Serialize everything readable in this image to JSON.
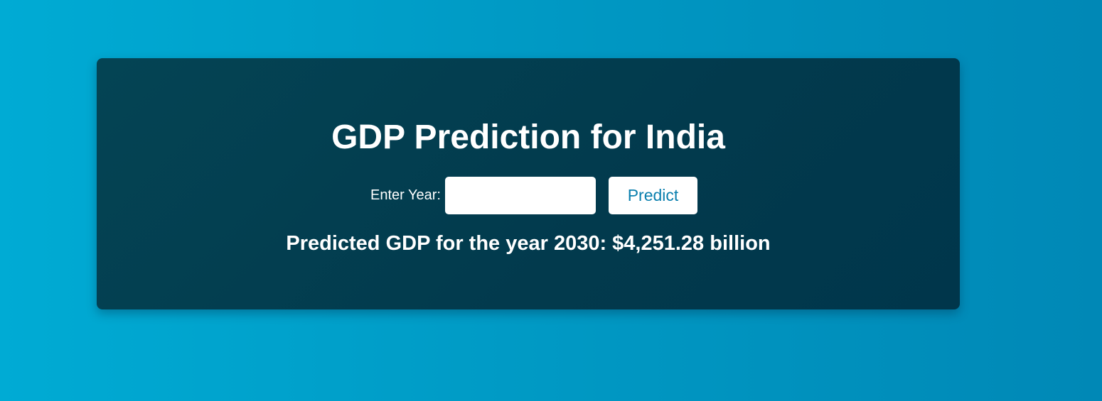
{
  "page": {
    "title": "GDP Prediction for India"
  },
  "form": {
    "year_label": "Enter Year:",
    "year_value": "",
    "year_placeholder": "",
    "predict_label": "Predict"
  },
  "result": {
    "text": "Predicted GDP for the year 2030: $4,251.28 billion"
  },
  "colors": {
    "background_start": "#00abd4",
    "background_end": "#0088b6",
    "card": "#023a4d",
    "button_text": "#0a7fae",
    "text": "#ffffff"
  }
}
